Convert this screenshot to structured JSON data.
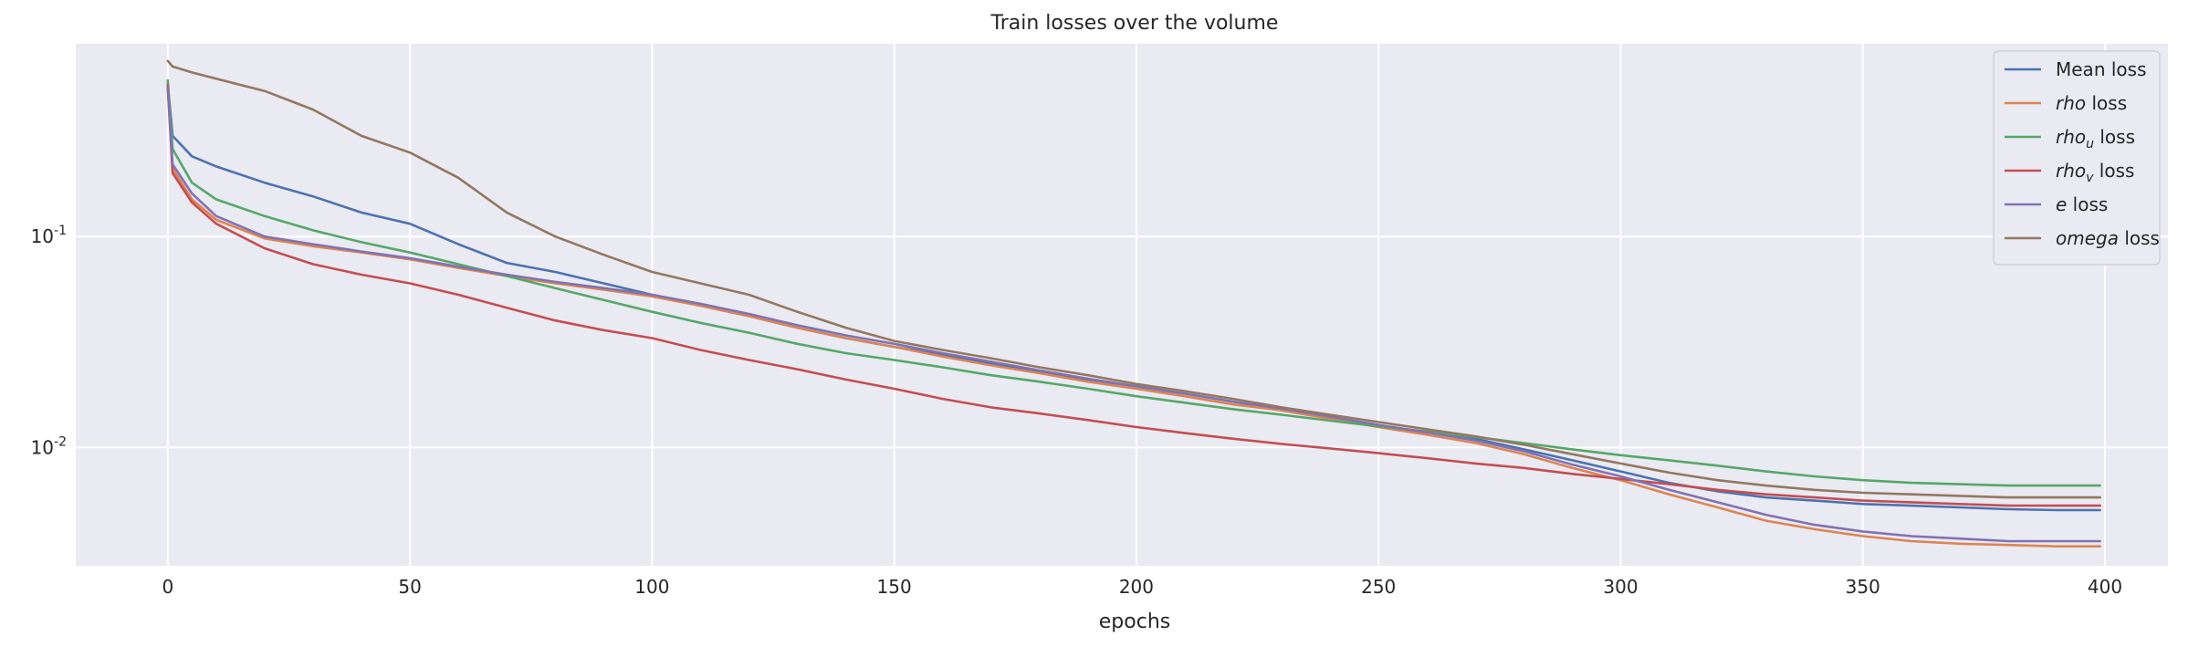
{
  "chart_data": {
    "type": "line",
    "title": "Train losses over the volume",
    "xlabel": "epochs",
    "ylabel": "",
    "xlim": [
      -19,
      413
    ],
    "ylim": [
      0.00275,
      0.82
    ],
    "yscale": "log",
    "grid": true,
    "legend_position": "top-right",
    "x_ticks": [
      0,
      50,
      100,
      150,
      200,
      250,
      300,
      350,
      400
    ],
    "y_ticks": [
      {
        "base": "10",
        "exp": "-1",
        "value": 0.1
      },
      {
        "base": "10",
        "exp": "-2",
        "value": 0.01
      }
    ],
    "x": [
      0,
      1,
      5,
      10,
      20,
      30,
      40,
      50,
      60,
      70,
      80,
      90,
      100,
      110,
      120,
      130,
      140,
      150,
      160,
      170,
      180,
      190,
      200,
      210,
      220,
      230,
      240,
      250,
      260,
      270,
      280,
      290,
      300,
      310,
      320,
      330,
      340,
      350,
      360,
      370,
      380,
      390,
      399
    ],
    "series": [
      {
        "name_prefix": "Mean",
        "name_sub": "",
        "name_suffix": " loss",
        "italic": false,
        "color": "#4c72b0",
        "values": [
          0.53,
          0.3,
          0.24,
          0.215,
          0.18,
          0.155,
          0.13,
          0.115,
          0.092,
          0.075,
          0.068,
          0.06,
          0.053,
          0.047,
          0.042,
          0.037,
          0.033,
          0.03,
          0.0275,
          0.025,
          0.023,
          0.021,
          0.0195,
          0.018,
          0.0165,
          0.015,
          0.0138,
          0.0127,
          0.0118,
          0.011,
          0.0098,
          0.0087,
          0.0077,
          0.0068,
          0.0062,
          0.0058,
          0.0056,
          0.0054,
          0.0053,
          0.0052,
          0.0051,
          0.00505,
          0.00505
        ]
      },
      {
        "name_prefix": "rho",
        "name_sub": "",
        "name_suffix": " loss",
        "italic": true,
        "color": "#dd8452",
        "values": [
          0.5,
          0.21,
          0.15,
          0.12,
          0.098,
          0.09,
          0.084,
          0.078,
          0.071,
          0.065,
          0.06,
          0.056,
          0.052,
          0.047,
          0.042,
          0.037,
          0.033,
          0.03,
          0.027,
          0.0245,
          0.0225,
          0.0205,
          0.019,
          0.0175,
          0.016,
          0.015,
          0.0137,
          0.0125,
          0.0115,
          0.0105,
          0.0093,
          0.008,
          0.007,
          0.006,
          0.0052,
          0.0045,
          0.0041,
          0.0038,
          0.0036,
          0.0035,
          0.00345,
          0.0034,
          0.0034
        ]
      },
      {
        "name_prefix": "rho",
        "name_sub": "u",
        "name_suffix": " loss",
        "italic": true,
        "color": "#55a868",
        "values": [
          0.55,
          0.26,
          0.18,
          0.15,
          0.125,
          0.107,
          0.094,
          0.084,
          0.074,
          0.065,
          0.057,
          0.05,
          0.044,
          0.039,
          0.035,
          0.031,
          0.028,
          0.026,
          0.024,
          0.022,
          0.0205,
          0.019,
          0.0175,
          0.0163,
          0.0152,
          0.0143,
          0.0134,
          0.0126,
          0.0119,
          0.0112,
          0.0105,
          0.0098,
          0.0092,
          0.0087,
          0.0082,
          0.0077,
          0.0073,
          0.007,
          0.0068,
          0.0067,
          0.0066,
          0.0066,
          0.0066
        ]
      },
      {
        "name_prefix": "rho",
        "name_sub": "v",
        "name_suffix": " loss",
        "italic": true,
        "color": "#c44e52",
        "values": [
          0.52,
          0.2,
          0.145,
          0.115,
          0.088,
          0.074,
          0.066,
          0.06,
          0.053,
          0.046,
          0.04,
          0.036,
          0.033,
          0.029,
          0.026,
          0.0235,
          0.021,
          0.019,
          0.017,
          0.0155,
          0.0145,
          0.0135,
          0.0125,
          0.0117,
          0.011,
          0.0104,
          0.0099,
          0.0094,
          0.0089,
          0.0084,
          0.008,
          0.0075,
          0.0071,
          0.0067,
          0.0063,
          0.006,
          0.0058,
          0.0056,
          0.0055,
          0.0054,
          0.0053,
          0.0053,
          0.0053
        ]
      },
      {
        "name_prefix": "e",
        "name_sub": "",
        "name_suffix": " loss",
        "italic": true,
        "color": "#8172b3",
        "values": [
          0.51,
          0.22,
          0.16,
          0.125,
          0.1,
          0.092,
          0.085,
          0.079,
          0.072,
          0.066,
          0.061,
          0.057,
          0.053,
          0.048,
          0.043,
          0.038,
          0.034,
          0.031,
          0.028,
          0.0255,
          0.0232,
          0.0212,
          0.0195,
          0.018,
          0.0165,
          0.0153,
          0.014,
          0.0128,
          0.0118,
          0.0108,
          0.0096,
          0.0083,
          0.0073,
          0.0063,
          0.0055,
          0.0048,
          0.0043,
          0.004,
          0.0038,
          0.0037,
          0.0036,
          0.0036,
          0.0036
        ]
      },
      {
        "name_prefix": "omega",
        "name_sub": "",
        "name_suffix": " loss",
        "italic": true,
        "color": "#937860",
        "values": [
          0.68,
          0.64,
          0.6,
          0.56,
          0.49,
          0.4,
          0.3,
          0.25,
          0.19,
          0.13,
          0.1,
          0.082,
          0.068,
          0.06,
          0.053,
          0.044,
          0.037,
          0.032,
          0.029,
          0.0265,
          0.024,
          0.022,
          0.02,
          0.0185,
          0.017,
          0.0155,
          0.0143,
          0.0132,
          0.0122,
          0.0113,
          0.0103,
          0.0093,
          0.0084,
          0.0076,
          0.007,
          0.0066,
          0.0063,
          0.0061,
          0.006,
          0.0059,
          0.0058,
          0.0058,
          0.0058
        ]
      }
    ]
  }
}
